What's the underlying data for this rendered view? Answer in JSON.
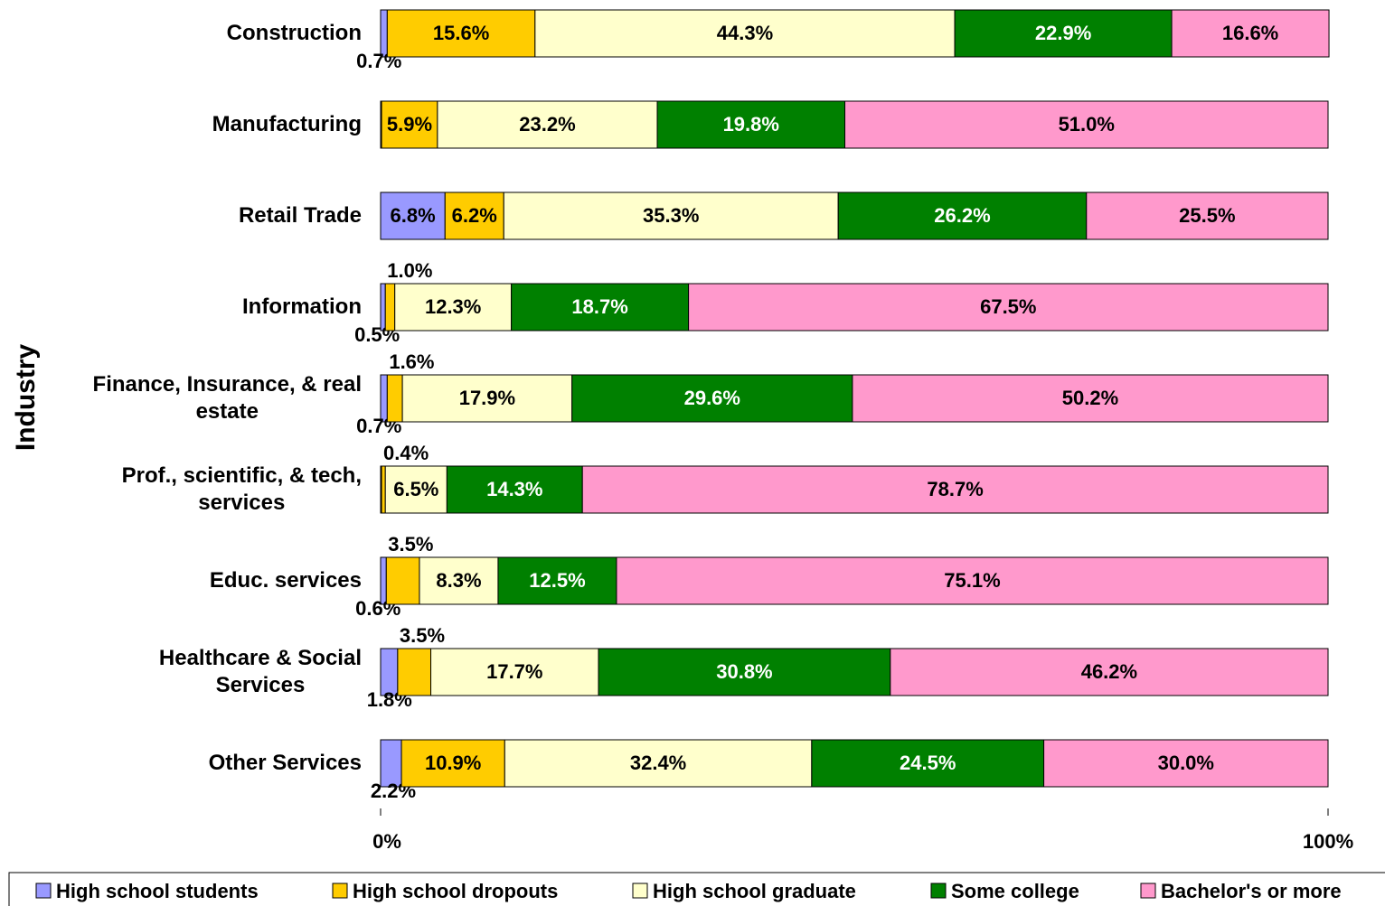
{
  "chart_data": {
    "type": "stacked_barh",
    "y_axis_title": "Industry",
    "categories": [
      "Construction",
      "Manufacturing",
      "Retail Trade",
      "Information",
      "Finance, Insurance, & real\nestate",
      "Prof., scientific, & tech,\nservices",
      "Educ. services",
      "Healthcare & Social\nServices",
      "Other Services"
    ],
    "series": [
      {
        "name": "High school students",
        "color": "#9999ff",
        "label_color": "#000000",
        "values": [
          0.7,
          0.1,
          6.8,
          0.5,
          0.7,
          0.1,
          0.6,
          1.8,
          2.2
        ],
        "value_labels": [
          "0.7%",
          null,
          "6.8%",
          "0.5%",
          "0.7%",
          null,
          "0.6%",
          "1.8%",
          "2.2%"
        ]
      },
      {
        "name": "High school dropouts",
        "color": "#ffcc00",
        "label_color": "#000000",
        "values": [
          15.6,
          5.9,
          6.2,
          1.0,
          1.6,
          0.4,
          3.5,
          3.5,
          10.9
        ],
        "value_labels": [
          "15.6%",
          "5.9%",
          "6.2%",
          "1.0%",
          "1.6%",
          "0.4%",
          "3.5%",
          "3.5%",
          "10.9%"
        ]
      },
      {
        "name": "High school graduate",
        "color": "#ffffcc",
        "label_color": "#000000",
        "values": [
          44.3,
          23.2,
          35.3,
          12.3,
          17.9,
          6.5,
          8.3,
          17.7,
          32.4
        ],
        "value_labels": [
          "44.3%",
          "23.2%",
          "35.3%",
          "12.3%",
          "17.9%",
          "6.5%",
          "8.3%",
          "17.7%",
          "32.4%"
        ]
      },
      {
        "name": "Some college",
        "color": "#008000",
        "label_color": "#ffffff",
        "values": [
          22.9,
          19.8,
          26.2,
          18.7,
          29.6,
          14.3,
          12.5,
          30.8,
          24.5
        ],
        "value_labels": [
          "22.9%",
          "19.8%",
          "26.2%",
          "18.7%",
          "29.6%",
          "14.3%",
          "12.5%",
          "30.8%",
          "24.5%"
        ]
      },
      {
        "name": "Bachelor's or more",
        "color": "#ff99cc",
        "label_color": "#000000",
        "values": [
          16.6,
          51.0,
          25.5,
          67.5,
          50.2,
          78.7,
          75.1,
          46.2,
          30.0
        ],
        "value_labels": [
          "16.6%",
          "51.0%",
          "25.5%",
          "67.5%",
          "50.2%",
          "78.7%",
          "75.1%",
          "46.2%",
          "30.0%"
        ]
      }
    ],
    "xlim": [
      0,
      100
    ],
    "xticks": [
      {
        "value": 0,
        "label": "0%"
      },
      {
        "value": 100,
        "label": "100%"
      }
    ],
    "legend": "bottom"
  }
}
